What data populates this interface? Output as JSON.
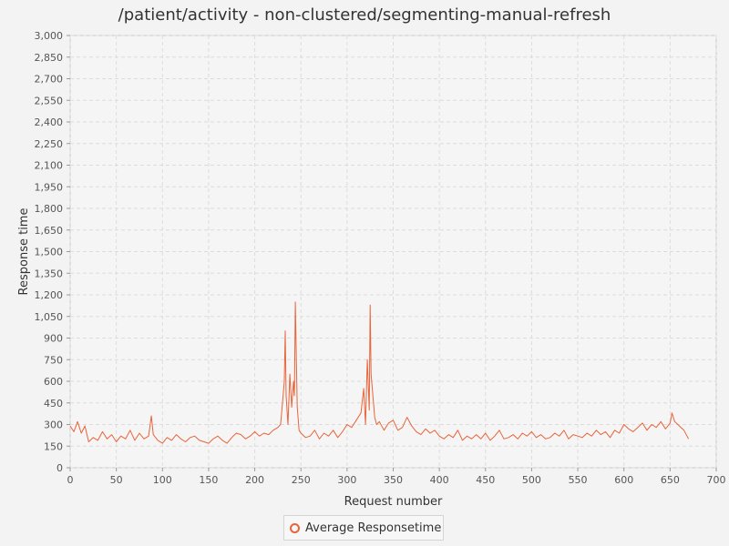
{
  "chart_data": {
    "type": "line",
    "title": "/patient/activity - non-clustered/segmenting-manual-refresh",
    "xlabel": "Request number",
    "ylabel": "Response time",
    "xlim": [
      0,
      700
    ],
    "ylim": [
      0,
      3000
    ],
    "x_ticks": [
      "0",
      "50",
      "100",
      "150",
      "200",
      "250",
      "300",
      "350",
      "400",
      "450",
      "500",
      "550",
      "600",
      "650",
      "700"
    ],
    "y_ticks": [
      "0",
      "150",
      "300",
      "450",
      "600",
      "750",
      "900",
      "1,050",
      "1,200",
      "1,350",
      "1,500",
      "1,650",
      "1,800",
      "1,950",
      "2,100",
      "2,250",
      "2,400",
      "2,550",
      "2,700",
      "2,850",
      "3,000"
    ],
    "grid": true,
    "legend_position": "bottom",
    "series": [
      {
        "name": "Average Responsetime",
        "color": "#e8643a",
        "x": [
          0,
          4,
          8,
          12,
          16,
          20,
          25,
          30,
          35,
          40,
          45,
          50,
          55,
          60,
          65,
          70,
          75,
          80,
          85,
          88,
          90,
          95,
          100,
          105,
          110,
          115,
          120,
          125,
          130,
          135,
          140,
          145,
          150,
          155,
          160,
          165,
          170,
          175,
          180,
          185,
          190,
          195,
          200,
          205,
          210,
          215,
          220,
          225,
          228,
          230,
          232,
          233,
          234,
          236,
          238,
          240,
          242,
          243,
          244,
          245,
          246,
          248,
          250,
          255,
          260,
          265,
          270,
          275,
          280,
          285,
          290,
          295,
          300,
          305,
          310,
          315,
          318,
          320,
          322,
          324,
          325,
          326,
          328,
          330,
          332,
          335,
          340,
          345,
          350,
          355,
          360,
          365,
          370,
          375,
          380,
          385,
          390,
          395,
          400,
          405,
          410,
          415,
          420,
          425,
          430,
          435,
          440,
          445,
          450,
          455,
          460,
          465,
          470,
          475,
          480,
          485,
          490,
          495,
          500,
          505,
          510,
          515,
          520,
          525,
          530,
          535,
          540,
          545,
          550,
          555,
          560,
          565,
          570,
          575,
          580,
          585,
          590,
          595,
          600,
          605,
          610,
          615,
          620,
          625,
          630,
          635,
          640,
          645,
          650,
          652,
          655,
          660,
          665,
          670
        ],
        "y": [
          290,
          250,
          320,
          240,
          290,
          180,
          210,
          190,
          250,
          200,
          230,
          180,
          220,
          200,
          260,
          190,
          240,
          200,
          220,
          360,
          230,
          190,
          170,
          210,
          190,
          230,
          200,
          180,
          210,
          220,
          190,
          180,
          170,
          200,
          220,
          190,
          170,
          210,
          240,
          230,
          200,
          220,
          250,
          220,
          240,
          230,
          260,
          280,
          300,
          450,
          600,
          950,
          500,
          300,
          650,
          420,
          600,
          500,
          1150,
          800,
          420,
          260,
          240,
          210,
          220,
          260,
          200,
          240,
          220,
          260,
          210,
          250,
          300,
          280,
          330,
          380,
          550,
          300,
          750,
          400,
          1130,
          650,
          500,
          350,
          300,
          320,
          260,
          310,
          330,
          260,
          280,
          350,
          290,
          250,
          230,
          270,
          240,
          260,
          220,
          200,
          230,
          210,
          260,
          190,
          220,
          200,
          230,
          200,
          240,
          190,
          220,
          260,
          200,
          210,
          230,
          200,
          240,
          220,
          250,
          210,
          230,
          200,
          210,
          240,
          220,
          260,
          200,
          230,
          220,
          210,
          240,
          220,
          260,
          230,
          250,
          210,
          260,
          240,
          300,
          270,
          250,
          280,
          310,
          260,
          300,
          280,
          320,
          270,
          310,
          380,
          320,
          290,
          260,
          200
        ]
      }
    ]
  }
}
